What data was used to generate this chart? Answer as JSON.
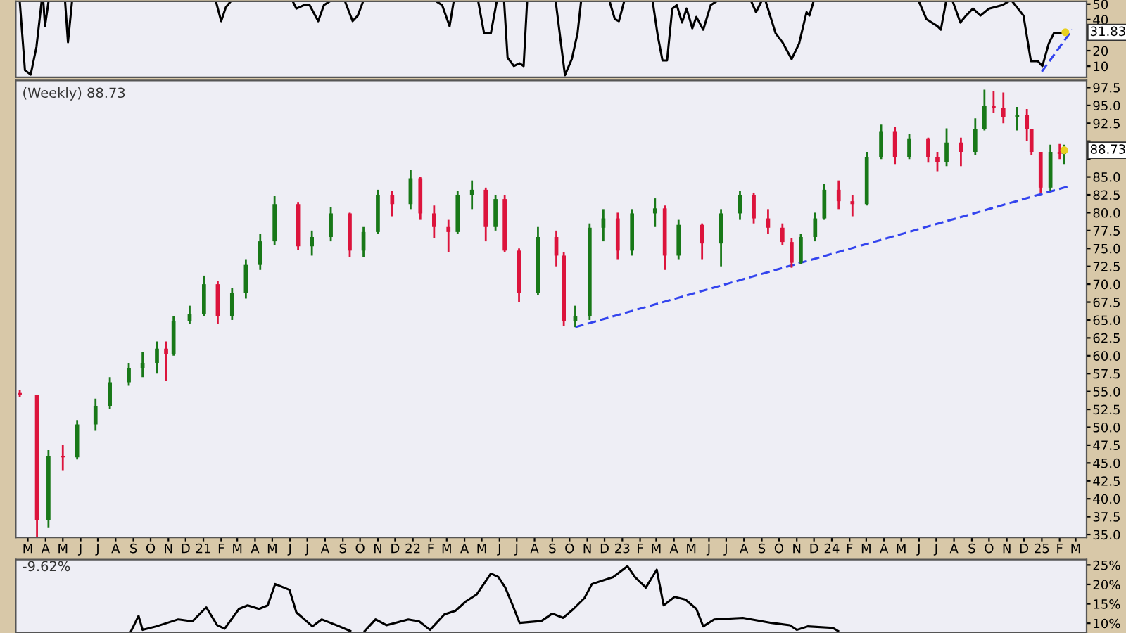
{
  "chart_data": [
    {
      "type": "line",
      "xlim": [
        "2020-02-09",
        "2025-03-20"
      ],
      "ylim": [
        2.9,
        51.8
      ],
      "yticks": [
        10,
        20,
        40,
        50
      ],
      "tick_labels": "y",
      "annotations": [
        {
          "text": "31.83",
          "x": "2025-02-11",
          "y": 31.83
        }
      ],
      "series": [
        {
          "color": "#000000",
          "x": [
            "2020-02-16",
            "2020-02-25",
            "2020-03-06",
            "2020-03-16",
            "2020-03-25",
            "2020-03-27",
            "2020-03-28",
            "2020-03-31",
            "2020-04-06",
            "2020-04-07",
            "2020-05-05",
            "2020-05-10",
            "2020-05-17",
            "2020-05-18",
            "2021-01-23",
            "2021-02-01",
            "2021-02-09",
            "2021-02-17",
            "2021-02-18",
            "2021-06-06",
            "2021-06-12",
            "2021-06-25",
            "2021-07-05",
            "2021-07-20",
            "2021-07-30",
            "2021-08-08",
            "2021-08-09",
            "2021-09-05",
            "2021-09-18",
            "2021-09-27",
            "2021-10-06",
            "2021-10-07",
            "2022-02-12",
            "2022-02-21",
            "2022-03-06",
            "2022-03-13",
            "2022-03-14",
            "2022-04-25",
            "2022-05-05",
            "2022-05-17",
            "2022-05-27",
            "2022-05-28",
            "2022-06-09",
            "2022-06-15",
            "2022-06-26",
            "2022-07-06",
            "2022-07-13",
            "2022-07-19",
            "2022-07-20",
            "2022-09-07",
            "2022-09-23",
            "2022-10-05",
            "2022-10-15",
            "2022-10-21",
            "2022-10-22",
            "2022-12-10",
            "2022-12-19",
            "2022-12-26",
            "2023-01-04",
            "2023-01-05",
            "2023-02-23",
            "2023-03-04",
            "2023-03-12",
            "2023-03-20",
            "2023-03-29",
            "2023-04-06",
            "2023-04-15",
            "2023-04-23",
            "2023-05-03",
            "2023-05-10",
            "2023-05-22",
            "2023-06-04",
            "2023-06-13",
            "2023-06-14",
            "2023-08-14",
            "2023-08-22",
            "2023-08-31",
            "2023-09-01",
            "2023-09-08",
            "2023-09-25",
            "2023-10-07",
            "2023-10-23",
            "2023-11-05",
            "2023-11-18",
            "2023-11-23",
            "2023-11-30",
            "2023-12-01",
            "2024-06-01",
            "2024-06-14",
            "2024-07-03",
            "2024-07-09",
            "2024-07-18",
            "2024-07-19",
            "2024-07-30",
            "2024-08-12",
            "2024-08-22",
            "2024-09-03",
            "2024-09-16",
            "2024-10-01",
            "2024-10-24",
            "2024-11-03",
            "2024-11-04",
            "2024-11-11",
            "2024-11-30",
            "2024-12-13",
            "2024-12-25",
            "2025-01-02",
            "2025-01-13",
            "2025-01-22",
            "2025-02-01",
            "2025-02-11"
          ],
          "values": [
            51.5,
            7.4,
            4.6,
            22.3,
            51.5,
            null,
            51.5,
            35.8,
            51.5,
            null,
            51.5,
            25.4,
            51.5,
            null,
            51.5,
            39,
            47.9,
            51.5,
            null,
            51.5,
            47.1,
            49.3,
            49.3,
            39,
            49.3,
            51.5,
            null,
            51.5,
            39,
            42.6,
            51.5,
            null,
            51.5,
            49.3,
            35.8,
            51.5,
            null,
            51.5,
            31.3,
            31.3,
            51.5,
            null,
            51.5,
            15.5,
            10.1,
            11.9,
            10.1,
            51.5,
            null,
            51.5,
            4.2,
            14.6,
            31.3,
            51.5,
            null,
            51.5,
            40.3,
            39,
            51.5,
            null,
            51.5,
            29,
            13.7,
            13.7,
            47.1,
            49.3,
            38.1,
            47.1,
            34.4,
            41.7,
            33.5,
            49.3,
            51.5,
            null,
            51.5,
            44.8,
            51.5,
            null,
            51.5,
            31.3,
            25.4,
            14.6,
            24.5,
            44.8,
            42.6,
            51.5,
            null,
            51.5,
            40.3,
            35.8,
            33.5,
            51.5,
            null,
            51.5,
            38.1,
            42.6,
            47.1,
            42.6,
            47.1,
            49.3,
            51.5,
            null,
            51.5,
            42.6,
            13.2,
            13.2,
            10.1,
            24.5,
            31.3,
            31.3,
            31.83
          ]
        },
        {
          "color": "#3344ee",
          "line_style": "dashed",
          "x": [
            "2025-01-01",
            "2025-02-23"
          ],
          "values": [
            6.5,
            33.5
          ]
        }
      ]
    },
    {
      "type": "candlestick",
      "title": "(Weekly) 88.73",
      "xlim": [
        "2020-02-09",
        "2025-03-20"
      ],
      "ylim": [
        34.6,
        98.5
      ],
      "annotations": [
        {
          "text": "88.73",
          "x": "2025-02-09",
          "y": 88.73
        }
      ],
      "x": [
        "2020-02-16",
        "2020-03-17",
        "2020-04-06",
        "2020-05-01",
        "2020-05-26",
        "2020-06-27",
        "2020-07-22",
        "2020-08-24",
        "2020-09-17",
        "2020-10-12",
        "2020-10-28",
        "2020-11-10",
        "2020-12-08",
        "2021-01-02",
        "2021-01-26",
        "2021-02-20",
        "2021-03-16",
        "2021-04-10",
        "2021-05-05",
        "2021-06-15",
        "2021-07-09",
        "2021-08-11",
        "2021-09-13",
        "2021-10-07",
        "2021-11-01",
        "2021-11-26",
        "2021-12-28",
        "2022-01-14",
        "2022-02-07",
        "2022-03-04",
        "2022-03-20",
        "2022-04-14",
        "2022-05-08",
        "2022-05-25",
        "2022-06-10",
        "2022-07-05",
        "2022-08-07",
        "2022-09-08",
        "2022-09-21",
        "2022-10-11",
        "2022-11-05",
        "2022-11-29",
        "2022-12-24",
        "2023-01-18",
        "2023-02-27",
        "2023-03-16",
        "2023-04-09",
        "2023-05-20",
        "2023-06-22",
        "2023-07-25",
        "2023-08-18",
        "2023-09-12",
        "2023-10-07",
        "2023-10-23",
        "2023-11-08",
        "2023-12-03",
        "2023-12-19",
        "2024-01-13",
        "2024-02-06",
        "2024-03-02",
        "2024-03-27",
        "2024-04-20",
        "2024-05-15",
        "2024-06-17",
        "2024-07-03",
        "2024-07-19",
        "2024-08-13",
        "2024-09-07",
        "2024-09-23",
        "2024-10-09",
        "2024-10-26",
        "2024-11-19",
        "2024-12-06",
        "2024-12-14",
        "2024-12-30",
        "2025-01-16",
        "2025-02-01",
        "2025-02-09"
      ],
      "ohlc": [
        [
          54.8,
          55.2,
          54.2,
          54.5
        ],
        [
          54.5,
          54.5,
          34,
          37
        ],
        [
          37,
          46.8,
          36,
          46
        ],
        [
          46,
          47.5,
          44,
          45.8
        ],
        [
          45.8,
          51,
          45.5,
          50.4
        ],
        [
          50.4,
          54,
          49.5,
          53
        ],
        [
          53,
          57,
          52.5,
          56.3
        ],
        [
          56.3,
          59,
          55.8,
          58.3
        ],
        [
          58.3,
          60.5,
          57,
          59
        ],
        [
          59,
          62,
          57.5,
          61
        ],
        [
          61,
          62,
          56.5,
          60.2
        ],
        [
          60.2,
          65.5,
          60,
          64.8
        ],
        [
          64.8,
          67,
          64.5,
          65.8
        ],
        [
          65.8,
          71.2,
          65.5,
          70
        ],
        [
          70,
          70.5,
          64.5,
          65.5
        ],
        [
          65.5,
          69.5,
          65,
          68.8
        ],
        [
          68.8,
          73.5,
          68,
          72.7
        ],
        [
          72.7,
          77,
          72,
          76
        ],
        [
          76,
          82.4,
          75.5,
          81.2
        ],
        [
          81.2,
          81.5,
          74.8,
          75.3
        ],
        [
          75.3,
          77.5,
          74,
          76.6
        ],
        [
          76.6,
          80.8,
          76,
          79.9
        ],
        [
          79.9,
          80,
          73.8,
          74.7
        ],
        [
          74.7,
          78,
          73.8,
          77.3
        ],
        [
          77.3,
          83.2,
          77,
          82.5
        ],
        [
          82.5,
          83,
          79.5,
          81.2
        ],
        [
          81.2,
          86,
          80.5,
          84.8
        ],
        [
          84.8,
          85,
          79,
          79.9
        ],
        [
          79.9,
          81,
          76.5,
          78
        ],
        [
          78,
          79,
          74.5,
          77.3
        ],
        [
          77.3,
          83,
          77,
          82.5
        ],
        [
          82.5,
          84.5,
          80.5,
          83.2
        ],
        [
          83.2,
          83.5,
          76,
          78
        ],
        [
          78,
          82.5,
          77.5,
          81.9
        ],
        [
          81.9,
          82.5,
          74.5,
          74.7
        ],
        [
          74.7,
          75,
          67.5,
          68.8
        ],
        [
          68.8,
          78,
          68.5,
          76.6
        ],
        [
          76.6,
          77.5,
          72.5,
          74
        ],
        [
          74,
          74.5,
          64.2,
          64.8
        ],
        [
          64.8,
          67,
          64,
          65.5
        ],
        [
          65.5,
          78.5,
          65,
          77.9
        ],
        [
          77.9,
          80.5,
          76,
          79.2
        ],
        [
          79.2,
          80,
          73.5,
          74.7
        ],
        [
          74.7,
          80.5,
          74,
          79.9
        ],
        [
          79.9,
          82,
          78,
          80.6
        ],
        [
          80.6,
          81,
          72,
          74
        ],
        [
          74,
          79,
          73.5,
          78.3
        ],
        [
          78.3,
          78.5,
          73.5,
          75.7
        ],
        [
          75.7,
          80.5,
          72.5,
          79.9
        ],
        [
          79.9,
          83,
          79,
          82.5
        ],
        [
          82.5,
          82.8,
          78.5,
          79.2
        ],
        [
          79.2,
          80.5,
          77,
          77.9
        ],
        [
          77.9,
          78.5,
          75.5,
          75.9
        ],
        [
          75.9,
          76.5,
          72.3,
          73
        ],
        [
          73,
          77,
          72.8,
          76.6
        ],
        [
          76.6,
          80,
          76,
          79.2
        ],
        [
          79.2,
          84,
          79,
          83.2
        ],
        [
          83.2,
          84.5,
          80.5,
          81.6
        ],
        [
          81.6,
          82.5,
          79.5,
          81.2
        ],
        [
          81.2,
          88.5,
          81,
          87.8
        ],
        [
          87.8,
          92.3,
          87.5,
          91.4
        ],
        [
          91.4,
          92,
          86.8,
          87.8
        ],
        [
          87.8,
          91,
          87.5,
          90.4
        ],
        [
          90.4,
          90.5,
          87,
          87.8
        ],
        [
          87.8,
          88.5,
          85.8,
          87.1
        ],
        [
          87.1,
          91.8,
          86.5,
          89.8
        ],
        [
          89.8,
          90.5,
          86.5,
          88.5
        ],
        [
          88.5,
          93.2,
          88,
          91.7
        ],
        [
          91.7,
          97.2,
          91.5,
          95
        ],
        [
          95,
          97,
          94,
          94.7
        ],
        [
          94.7,
          96.8,
          92.5,
          93.4
        ],
        [
          93.4,
          94.8,
          91.5,
          93.7
        ],
        [
          93.7,
          94.5,
          90,
          91.7
        ],
        [
          91.7,
          91.7,
          88,
          88.5
        ],
        [
          88.5,
          88.5,
          82.8,
          83.5
        ],
        [
          83.5,
          89.5,
          83,
          88.5
        ],
        [
          88.5,
          89.6,
          87.5,
          88.2
        ],
        [
          88.2,
          89.5,
          86.8,
          88.73
        ]
      ],
      "colors": [
        "#dc143c",
        "#dc143c",
        "#187818",
        "#dc143c",
        "#187818",
        "#187818",
        "#187818",
        "#187818",
        "#187818",
        "#187818",
        "#dc143c",
        "#187818",
        "#187818",
        "#187818",
        "#dc143c",
        "#187818",
        "#187818",
        "#187818",
        "#187818",
        "#dc143c",
        "#187818",
        "#187818",
        "#dc143c",
        "#187818",
        "#187818",
        "#dc143c",
        "#187818",
        "#dc143c",
        "#dc143c",
        "#dc143c",
        "#187818",
        "#187818",
        "#dc143c",
        "#187818",
        "#dc143c",
        "#dc143c",
        "#187818",
        "#dc143c",
        "#dc143c",
        "#187818",
        "#187818",
        "#187818",
        "#dc143c",
        "#187818",
        "#187818",
        "#dc143c",
        "#187818",
        "#dc143c",
        "#187818",
        "#187818",
        "#dc143c",
        "#dc143c",
        "#dc143c",
        "#dc143c",
        "#187818",
        "#187818",
        "#187818",
        "#dc143c",
        "#dc143c",
        "#187818",
        "#187818",
        "#dc143c",
        "#187818",
        "#dc143c",
        "#dc143c",
        "#187818",
        "#dc143c",
        "#187818",
        "#187818",
        "#dc143c",
        "#dc143c",
        "#187818",
        "#dc143c",
        "#dc143c",
        "#dc143c",
        "#187818",
        "#dc143c",
        "#187818"
      ],
      "series": [
        {
          "type": "line",
          "color": "#3344ee",
          "line_style": "dashed",
          "x": [
            "2022-10-11",
            "2025-02-17"
          ],
          "values": [
            64,
            83.7
          ]
        }
      ],
      "yticks": [
        {
          "value": 35,
          "label": "35.0"
        },
        {
          "value": 37.5,
          "label": "37.5"
        },
        {
          "value": 40,
          "label": "40.0"
        },
        {
          "value": 42.5,
          "label": "42.5"
        },
        {
          "value": 45,
          "label": "45.0"
        },
        {
          "value": 47.5,
          "label": "47.5"
        },
        {
          "value": 50,
          "label": "50.0"
        },
        {
          "value": 52.5,
          "label": "52.5"
        },
        {
          "value": 55,
          "label": "55.0"
        },
        {
          "value": 57.5,
          "label": "57.5"
        },
        {
          "value": 60,
          "label": "60.0"
        },
        {
          "value": 62.5,
          "label": "62.5"
        },
        {
          "value": 65,
          "label": "65.0"
        },
        {
          "value": 67.5,
          "label": "67.5"
        },
        {
          "value": 70,
          "label": "70.0"
        },
        {
          "value": 72.5,
          "label": "72.5"
        },
        {
          "value": 75,
          "label": "75.0"
        },
        {
          "value": 77.5,
          "label": "77.5"
        },
        {
          "value": 80,
          "label": "80.0"
        },
        {
          "value": 82.5,
          "label": "82.5"
        },
        {
          "value": 85,
          "label": "85.0"
        },
        {
          "value": 87.5,
          "label": null
        },
        {
          "value": 90,
          "label": null
        },
        {
          "value": 92.5,
          "label": "92.5"
        },
        {
          "value": 95,
          "label": "95.0"
        },
        {
          "value": 97.5,
          "label": "97.5"
        }
      ],
      "xticks": [
        {
          "value": "2020-03-01",
          "label": "M"
        },
        {
          "value": "2020-04-01",
          "label": "A"
        },
        {
          "value": "2020-05-01",
          "label": "M"
        },
        {
          "value": "2020-06-01",
          "label": "J"
        },
        {
          "value": "2020-07-01",
          "label": "J"
        },
        {
          "value": "2020-08-01",
          "label": "A"
        },
        {
          "value": "2020-09-01",
          "label": "S"
        },
        {
          "value": "2020-10-01",
          "label": "O"
        },
        {
          "value": "2020-11-01",
          "label": "N"
        },
        {
          "value": "2020-12-01",
          "label": "D"
        },
        {
          "value": "2021-01-01",
          "label": "21"
        },
        {
          "value": "2021-02-01",
          "label": "F"
        },
        {
          "value": "2021-03-01",
          "label": "M"
        },
        {
          "value": "2021-04-01",
          "label": "A"
        },
        {
          "value": "2021-05-01",
          "label": "M"
        },
        {
          "value": "2021-06-01",
          "label": "J"
        },
        {
          "value": "2021-07-01",
          "label": "J"
        },
        {
          "value": "2021-08-01",
          "label": "A"
        },
        {
          "value": "2021-09-01",
          "label": "S"
        },
        {
          "value": "2021-10-01",
          "label": "O"
        },
        {
          "value": "2021-11-01",
          "label": "N"
        },
        {
          "value": "2021-12-01",
          "label": "D"
        },
        {
          "value": "2022-01-01",
          "label": "22"
        },
        {
          "value": "2022-02-01",
          "label": "F"
        },
        {
          "value": "2022-03-01",
          "label": "M"
        },
        {
          "value": "2022-04-01",
          "label": "A"
        },
        {
          "value": "2022-05-01",
          "label": "M"
        },
        {
          "value": "2022-06-01",
          "label": "J"
        },
        {
          "value": "2022-07-01",
          "label": "J"
        },
        {
          "value": "2022-08-01",
          "label": "A"
        },
        {
          "value": "2022-09-01",
          "label": "S"
        },
        {
          "value": "2022-10-01",
          "label": "O"
        },
        {
          "value": "2022-11-01",
          "label": "N"
        },
        {
          "value": "2022-12-01",
          "label": "D"
        },
        {
          "value": "2023-01-01",
          "label": "23"
        },
        {
          "value": "2023-02-01",
          "label": "F"
        },
        {
          "value": "2023-03-01",
          "label": "M"
        },
        {
          "value": "2023-04-01",
          "label": "A"
        },
        {
          "value": "2023-05-01",
          "label": "M"
        },
        {
          "value": "2023-06-01",
          "label": "J"
        },
        {
          "value": "2023-07-01",
          "label": "J"
        },
        {
          "value": "2023-08-01",
          "label": "A"
        },
        {
          "value": "2023-09-01",
          "label": "S"
        },
        {
          "value": "2023-10-01",
          "label": "O"
        },
        {
          "value": "2023-11-01",
          "label": "N"
        },
        {
          "value": "2023-12-01",
          "label": "D"
        },
        {
          "value": "2024-01-01",
          "label": "24"
        },
        {
          "value": "2024-02-01",
          "label": "F"
        },
        {
          "value": "2024-03-01",
          "label": "M"
        },
        {
          "value": "2024-04-01",
          "label": "A"
        },
        {
          "value": "2024-05-01",
          "label": "M"
        },
        {
          "value": "2024-06-01",
          "label": "J"
        },
        {
          "value": "2024-07-01",
          "label": "J"
        },
        {
          "value": "2024-08-01",
          "label": "A"
        },
        {
          "value": "2024-09-01",
          "label": "S"
        },
        {
          "value": "2024-10-01",
          "label": "O"
        },
        {
          "value": "2024-11-01",
          "label": "N"
        },
        {
          "value": "2024-12-01",
          "label": "D"
        },
        {
          "value": "2025-01-01",
          "label": "25"
        },
        {
          "value": "2025-02-01",
          "label": "F"
        },
        {
          "value": "2025-03-01",
          "label": "M"
        }
      ]
    },
    {
      "type": "line",
      "title": "-9.62%",
      "xlim": [
        "2020-02-09",
        "2025-03-20"
      ],
      "ylim": [
        7.5,
        26.4
      ],
      "tick_labels": "y",
      "yticks": [
        {
          "value": 10,
          "label": "10%"
        },
        {
          "value": 15,
          "label": "15%"
        },
        {
          "value": 20,
          "label": "20%"
        },
        {
          "value": 25,
          "label": "25%"
        }
      ],
      "series": [
        {
          "color": "#000000",
          "x": [
            "2020-08-28",
            "2020-09-10",
            "2020-09-17",
            "2020-10-11",
            "2020-11-18",
            "2020-12-13",
            "2021-01-06",
            "2021-01-25",
            "2021-02-07",
            "2021-03-04",
            "2021-03-19",
            "2021-04-08",
            "2021-04-23",
            "2021-05-06",
            "2021-05-31",
            "2021-06-12",
            "2021-07-10",
            "2021-07-26",
            "2021-08-26",
            "2021-09-14",
            "2021-09-15",
            "2021-10-09",
            "2021-10-28",
            "2021-11-16",
            "2021-12-24",
            "2022-01-12",
            "2022-01-31",
            "2022-02-25",
            "2022-03-16",
            "2022-04-03",
            "2022-04-22",
            "2022-05-17",
            "2022-05-30",
            "2022-06-11",
            "2022-06-24",
            "2022-07-06",
            "2022-08-13",
            "2022-09-01",
            "2022-09-20",
            "2022-10-08",
            "2022-10-27",
            "2022-11-09",
            "2022-12-16",
            "2023-01-10",
            "2023-01-23",
            "2023-02-11",
            "2023-03-02",
            "2023-03-14",
            "2023-04-02",
            "2023-04-21",
            "2023-05-10",
            "2023-05-22",
            "2023-06-10",
            "2023-07-30",
            "2023-09-18",
            "2023-10-20",
            "2023-11-01",
            "2023-11-20",
            "2024-01-03",
            "2024-01-12"
          ],
          "values": [
            8.0,
            11.9,
            8.3,
            9.2,
            11,
            10.5,
            14.1,
            9.5,
            8.6,
            13.7,
            14.6,
            13.7,
            14.6,
            20.1,
            18.6,
            12.8,
            9.2,
            11,
            9.2,
            8.0,
            null,
            8.0,
            11,
            9.5,
            11,
            10.5,
            8.3,
            12.3,
            13.2,
            15.6,
            17.4,
            22.8,
            21.9,
            19.2,
            14.6,
            10.1,
            10.6,
            12.5,
            11.4,
            13.7,
            16.5,
            20.1,
            21.9,
            24.7,
            21.9,
            19.2,
            23.8,
            14.6,
            16.8,
            16.1,
            13.7,
            9.2,
            11,
            11.4,
            10.1,
            9.5,
            8.3,
            9.2,
            8.8,
            8.0
          ]
        }
      ]
    }
  ]
}
